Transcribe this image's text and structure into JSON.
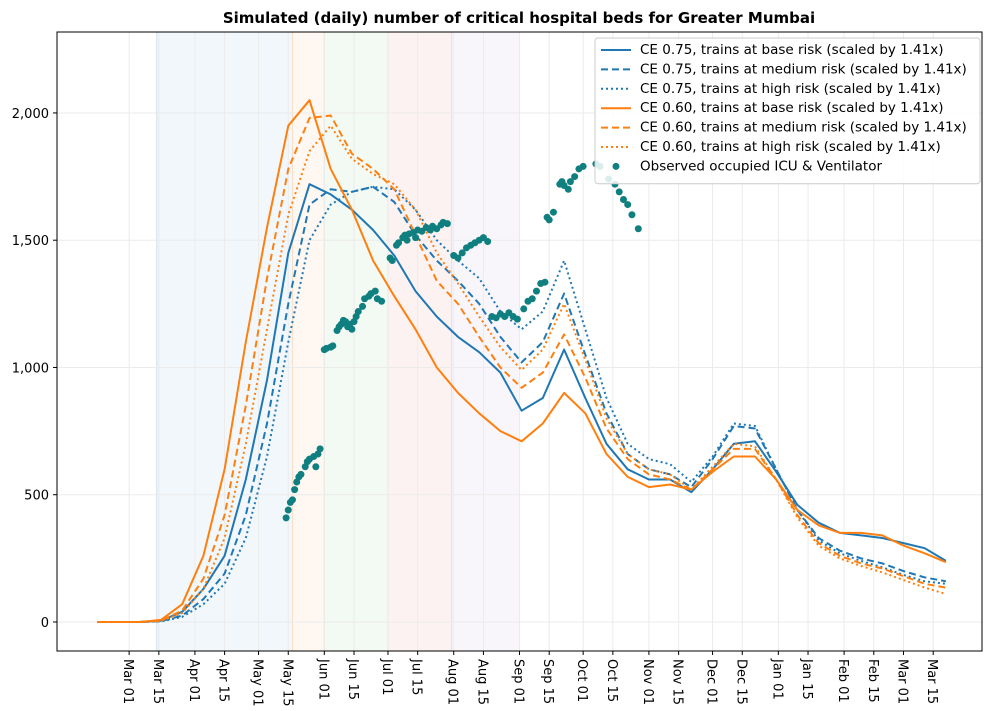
{
  "chart_data": {
    "type": "line",
    "title": "Simulated (daily) number of critical hospital beds for Greater Mumbai",
    "x": [
      -15,
      -5,
      5,
      15,
      25,
      35,
      45,
      55,
      65,
      75,
      85,
      95,
      105,
      115,
      125,
      135,
      145,
      155,
      165,
      175,
      185,
      195,
      205,
      215,
      225,
      235,
      245,
      255,
      265,
      275,
      285,
      295,
      305,
      315,
      325,
      335,
      345,
      355,
      365,
      375,
      385
    ],
    "xlim": [
      -34,
      402
    ],
    "xticks": [
      {
        "value": 0,
        "label": "Mar 01"
      },
      {
        "value": 14,
        "label": "Mar 15"
      },
      {
        "value": 31,
        "label": "Apr 01"
      },
      {
        "value": 45,
        "label": "Apr 15"
      },
      {
        "value": 61,
        "label": "May 01"
      },
      {
        "value": 75,
        "label": "May 15"
      },
      {
        "value": 92,
        "label": "Jun 01"
      },
      {
        "value": 106,
        "label": "Jun 15"
      },
      {
        "value": 122,
        "label": "Jul 01"
      },
      {
        "value": 136,
        "label": "Jul 15"
      },
      {
        "value": 153,
        "label": "Aug 01"
      },
      {
        "value": 167,
        "label": "Aug 15"
      },
      {
        "value": 184,
        "label": "Sep 01"
      },
      {
        "value": 198,
        "label": "Sep 15"
      },
      {
        "value": 214,
        "label": "Oct 01"
      },
      {
        "value": 228,
        "label": "Oct 15"
      },
      {
        "value": 245,
        "label": "Nov 01"
      },
      {
        "value": 259,
        "label": "Nov 15"
      },
      {
        "value": 275,
        "label": "Dec 01"
      },
      {
        "value": 289,
        "label": "Dec 15"
      },
      {
        "value": 306,
        "label": "Jan 01"
      },
      {
        "value": 320,
        "label": "Jan 15"
      },
      {
        "value": 337,
        "label": "Feb 01"
      },
      {
        "value": 351,
        "label": "Feb 15"
      },
      {
        "value": 365,
        "label": "Mar 01"
      },
      {
        "value": 379,
        "label": "Mar 15"
      }
    ],
    "ylim": [
      -114,
      2318
    ],
    "yticks": [
      0,
      500,
      {
        "value": 1000,
        "label": "1,000"
      },
      {
        "value": 1500,
        "label": "1,500"
      },
      {
        "value": 2000,
        "label": "2,000"
      }
    ],
    "grid": true,
    "legend": "upper right",
    "shaded_regions": [
      {
        "start": 13,
        "end": 77,
        "color": "#1f77b4"
      },
      {
        "start": 77,
        "end": 92,
        "color": "#ff7f0e"
      },
      {
        "start": 92,
        "end": 122,
        "color": "#2ca02c"
      },
      {
        "start": 122,
        "end": 152,
        "color": "#d62728"
      },
      {
        "start": 152,
        "end": 184,
        "color": "#9467bd"
      }
    ],
    "series": [
      {
        "name": "CE 0.75, trains at base risk (scaled by 1.41x)",
        "color": "#1f77b4",
        "linestyle": "solid",
        "values": [
          0,
          0,
          0,
          5,
          40,
          130,
          260,
          560,
          950,
          1450,
          1720,
          1680,
          1620,
          1540,
          1440,
          1300,
          1200,
          1120,
          1060,
          980,
          830,
          880,
          1070,
          880,
          700,
          600,
          560,
          560,
          510,
          600,
          700,
          710,
          590,
          460,
          390,
          350,
          340,
          330,
          310,
          290,
          240
        ]
      },
      {
        "name": "CE 0.75, trains at medium risk (scaled by 1.41x)",
        "color": "#1f77b4",
        "linestyle": "dashed",
        "values": [
          0,
          0,
          0,
          3,
          25,
          90,
          190,
          420,
          780,
          1250,
          1640,
          1700,
          1690,
          1710,
          1650,
          1520,
          1420,
          1340,
          1250,
          1120,
          1020,
          1100,
          1290,
          1050,
          820,
          660,
          600,
          580,
          530,
          640,
          770,
          760,
          600,
          440,
          330,
          280,
          250,
          230,
          200,
          175,
          160
        ]
      },
      {
        "name": "CE 0.75, trains at high risk (scaled by 1.41x)",
        "color": "#1f77b4",
        "linestyle": "dotted",
        "values": [
          0,
          0,
          0,
          2,
          20,
          70,
          150,
          330,
          650,
          1100,
          1500,
          1640,
          1690,
          1710,
          1700,
          1620,
          1500,
          1420,
          1350,
          1220,
          1150,
          1220,
          1420,
          1150,
          880,
          700,
          640,
          620,
          550,
          650,
          780,
          770,
          600,
          440,
          320,
          270,
          240,
          215,
          185,
          160,
          150
        ]
      },
      {
        "name": "CE 0.60, trains at base risk (scaled by 1.41x)",
        "color": "#ff7f0e",
        "linestyle": "solid",
        "values": [
          0,
          0,
          0,
          8,
          70,
          260,
          600,
          1100,
          1550,
          1950,
          2050,
          1780,
          1620,
          1420,
          1280,
          1150,
          1000,
          900,
          820,
          750,
          710,
          780,
          900,
          820,
          660,
          570,
          530,
          540,
          520,
          590,
          650,
          650,
          560,
          440,
          380,
          350,
          350,
          340,
          300,
          270,
          235
        ]
      },
      {
        "name": "CE 0.60, trains at medium risk (scaled by 1.41x)",
        "color": "#ff7f0e",
        "linestyle": "dashed",
        "values": [
          0,
          0,
          0,
          5,
          45,
          170,
          420,
          850,
          1350,
          1780,
          1980,
          1990,
          1840,
          1780,
          1700,
          1520,
          1340,
          1250,
          1120,
          1000,
          920,
          980,
          1130,
          960,
          760,
          640,
          580,
          560,
          520,
          600,
          680,
          680,
          560,
          420,
          310,
          260,
          230,
          210,
          180,
          150,
          135
        ]
      },
      {
        "name": "CE 0.60, trains at high risk (scaled by 1.41x)",
        "color": "#ff7f0e",
        "linestyle": "dotted",
        "values": [
          0,
          0,
          0,
          4,
          35,
          130,
          330,
          700,
          1150,
          1600,
          1850,
          1950,
          1820,
          1760,
          1720,
          1620,
          1450,
          1330,
          1200,
          1080,
          990,
          1070,
          1250,
          1030,
          800,
          660,
          600,
          580,
          520,
          610,
          700,
          690,
          560,
          410,
          300,
          250,
          220,
          195,
          165,
          135,
          110
        ]
      },
      {
        "name": "Observed occupied ICU & Ventilator",
        "color": "#0f7f7f",
        "type": "scatter",
        "x": [
          74,
          75,
          76,
          77,
          78,
          79,
          80,
          81,
          83,
          84,
          85,
          87,
          88,
          89,
          90,
          92,
          93,
          95,
          96,
          98,
          99,
          100,
          101,
          102,
          103,
          104,
          105,
          106,
          107,
          108,
          110,
          111,
          113,
          114,
          116,
          117,
          119,
          123,
          124,
          126,
          127,
          129,
          130,
          131,
          132,
          134,
          135,
          136,
          138,
          140,
          142,
          143,
          145,
          147,
          148,
          150,
          153,
          155,
          157,
          159,
          161,
          163,
          165,
          167,
          169,
          171,
          173,
          175,
          177,
          179,
          181,
          183,
          186,
          188,
          190,
          192,
          194,
          196,
          197,
          198,
          200,
          203,
          204,
          205,
          207,
          208,
          210,
          212,
          214,
          220,
          222,
          226,
          229,
          231,
          233,
          235,
          237,
          240
        ],
        "values": [
          409,
          440,
          470,
          480,
          520,
          550,
          570,
          580,
          610,
          630,
          640,
          650,
          610,
          660,
          680,
          1070,
          1075,
          1080,
          1085,
          1145,
          1160,
          1170,
          1185,
          1180,
          1160,
          1170,
          1150,
          1180,
          1200,
          1220,
          1240,
          1270,
          1280,
          1290,
          1300,
          1270,
          1260,
          1430,
          1420,
          1480,
          1490,
          1510,
          1520,
          1500,
          1525,
          1530,
          1510,
          1540,
          1535,
          1550,
          1540,
          1555,
          1545,
          1560,
          1570,
          1565,
          1440,
          1430,
          1450,
          1470,
          1480,
          1490,
          1500,
          1510,
          1495,
          1200,
          1195,
          1210,
          1200,
          1215,
          1200,
          1190,
          1230,
          1260,
          1270,
          1300,
          1330,
          1335,
          1590,
          1580,
          1610,
          1720,
          1730,
          1715,
          1700,
          1730,
          1750,
          1780,
          1790,
          1800,
          1790,
          1740,
          1720,
          1690,
          1660,
          1640,
          1600,
          1545
        ]
      }
    ]
  }
}
